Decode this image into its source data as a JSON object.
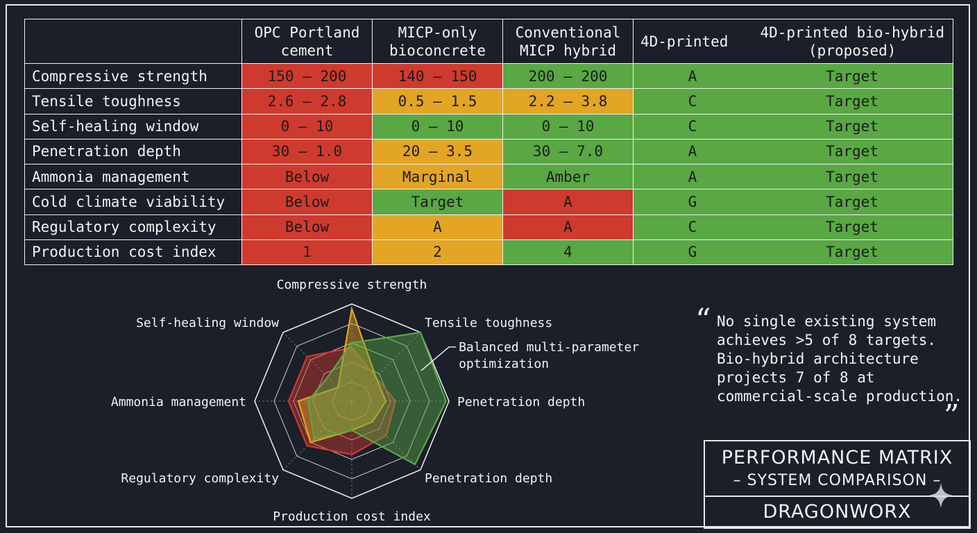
{
  "chart_data": [
    {
      "type": "table",
      "columns": [
        "",
        "OPC Portland\ncement",
        "MICP-only\nbioconcrete",
        "Conventional\nMICP hybrid",
        "4D-printed",
        "4D-printed bio-hybrid\n(proposed)"
      ],
      "rows": [
        {
          "label": "Compressive strength",
          "cells": [
            "150 – 200",
            "140 – 150",
            "200 – 200",
            "A",
            "Target"
          ],
          "status": [
            "red",
            "red",
            "green",
            "green",
            "green"
          ]
        },
        {
          "label": "Tensile toughness",
          "cells": [
            "2.6 – 2.8",
            "0.5 – 1.5",
            "2.2 – 3.8",
            "C",
            "Target"
          ],
          "status": [
            "red",
            "amber",
            "amber",
            "green",
            "green"
          ]
        },
        {
          "label": "Self-healing window",
          "cells": [
            "0 – 10",
            "0 – 10",
            "0 – 10",
            "C",
            "Target"
          ],
          "status": [
            "red",
            "green",
            "green",
            "green",
            "green"
          ]
        },
        {
          "label": "Penetration depth",
          "cells": [
            "30 – 1.0",
            "20 – 3.5",
            "30 – 7.0",
            "A",
            "Target"
          ],
          "status": [
            "red",
            "amber",
            "green",
            "green",
            "green"
          ]
        },
        {
          "label": "Ammonia management",
          "cells": [
            "Below",
            "Marginal",
            "Amber",
            "A",
            "Target"
          ],
          "status": [
            "red",
            "amber",
            "green",
            "green",
            "green"
          ]
        },
        {
          "label": "Cold climate viability",
          "cells": [
            "Below",
            "Target",
            "A",
            "G",
            "Target"
          ],
          "status": [
            "red",
            "green",
            "red",
            "green",
            "green"
          ]
        },
        {
          "label": "Regulatory complexity",
          "cells": [
            "Below",
            "A",
            "A",
            "C",
            "Target"
          ],
          "status": [
            "red",
            "amber",
            "red",
            "green",
            "green"
          ]
        },
        {
          "label": "Production cost index",
          "cells": [
            "1",
            "2",
            "4",
            "G",
            "Target"
          ],
          "status": [
            "red",
            "amber",
            "green",
            "green",
            "green"
          ]
        }
      ],
      "colors": {
        "red": "#cf3a2e",
        "amber": "#e2a524",
        "green": "#59a844"
      }
    },
    {
      "type": "radar",
      "axes": [
        "Compressive strength",
        "Tensile toughness",
        "Penetration depth",
        "Penetration depth",
        "Production cost index",
        "Regulatory complexity",
        "Ammonia management",
        "Self-healing window"
      ],
      "rings": 5,
      "ylim": [
        0,
        1
      ],
      "series": [
        {
          "color": "#cf3a2e",
          "values": [
            0.55,
            0.35,
            0.45,
            0.5,
            0.55,
            0.65,
            0.65,
            0.65
          ]
        },
        {
          "color": "#e2a524",
          "values": [
            0.95,
            0.35,
            0.35,
            0.3,
            0.3,
            0.6,
            0.55,
            0.2
          ]
        },
        {
          "color": "#59a844",
          "values": [
            0.6,
            1.0,
            0.97,
            0.92,
            0.3,
            0.55,
            0.45,
            0.35
          ]
        }
      ],
      "annotation": "Balanced multi-parameter\noptimization",
      "grid": true
    }
  ],
  "quote": {
    "open": "“",
    "text": "No single existing system\nachieves >5 of 8 targets.\nBio-hybrid architecture\nprojects 7 of 8 at\ncommercial-scale production.",
    "close": "”"
  },
  "title_box": {
    "title": "PERFORMANCE MATRIX",
    "subtitle": "– SYSTEM COMPARISON –",
    "brand": "DRAGONWORX"
  }
}
